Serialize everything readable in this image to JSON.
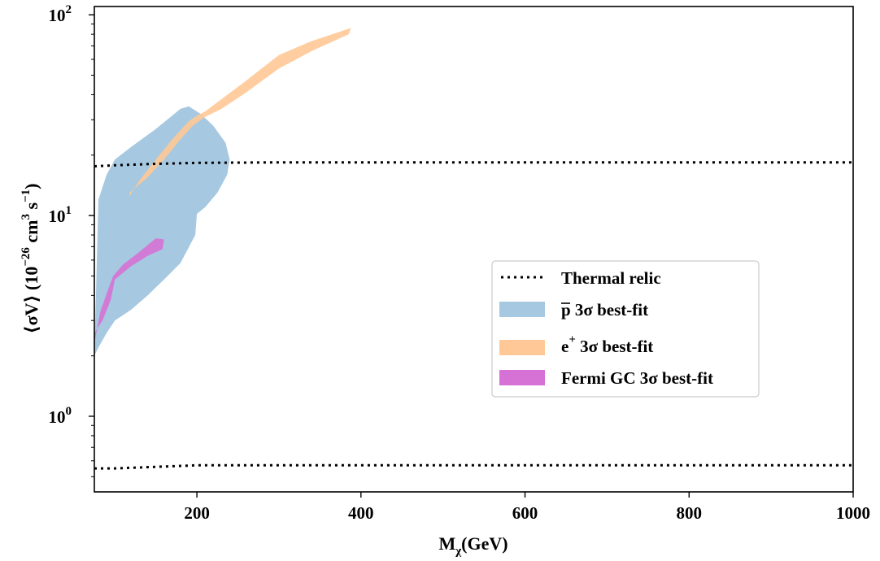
{
  "chart_data": {
    "type": "area",
    "title": "",
    "xlabel_main": "M",
    "xlabel_sub": "χ",
    "xlabel_rest": "(GeV)",
    "ylabel_parts": {
      "start": "⟨σV⟩ (10",
      "exp1": "−26",
      "mid": " cm",
      "exp2": "3",
      "mid2": " s",
      "exp3": "−1",
      "end": ")"
    },
    "xlim": [
      75,
      1000
    ],
    "ylim": [
      0.42,
      110
    ],
    "yscale": "log",
    "x_ticks": [
      {
        "value": 200,
        "label": "200"
      },
      {
        "value": 400,
        "label": "400"
      },
      {
        "value": 600,
        "label": "600"
      },
      {
        "value": 800,
        "label": "800"
      },
      {
        "value": 1000,
        "label": "1000"
      }
    ],
    "y_ticks": [
      {
        "value": 1,
        "base": "10",
        "exp": "0"
      },
      {
        "value": 10,
        "base": "10",
        "exp": "1"
      },
      {
        "value": 100,
        "base": "10",
        "exp": "2"
      }
    ],
    "legend_position": "center-right",
    "series": [
      {
        "name": "Thermal relic",
        "kind": "line",
        "style": "dotted",
        "color": "#000000",
        "segments": [
          {
            "x": [
              75,
              100,
              150,
              200,
              300,
              500,
              1000
            ],
            "y": [
              17.6,
              17.8,
              18.1,
              18.3,
              18.4,
              18.4,
              18.4
            ]
          },
          {
            "x": [
              75,
              100,
              150,
              200,
              300,
              500,
              1000
            ],
            "y": [
              0.55,
              0.55,
              0.56,
              0.57,
              0.57,
              0.57,
              0.57
            ]
          }
        ]
      },
      {
        "name": "p̅ 3σ best-fit",
        "kind": "region",
        "color": "#a6c8e0",
        "polygon": {
          "x": [
            75,
            80,
            90,
            100,
            120,
            150,
            180,
            190,
            205,
            220,
            235,
            240,
            237,
            225,
            210,
            200,
            198,
            180,
            160,
            140,
            120,
            100,
            90,
            80,
            75
          ],
          "y": [
            2.0,
            12.0,
            16.0,
            19.0,
            22.0,
            27.0,
            34.0,
            35.0,
            32.0,
            28.0,
            23.0,
            19.0,
            16.0,
            13.0,
            11.0,
            10.2,
            8.0,
            5.8,
            4.8,
            4.0,
            3.4,
            3.0,
            2.6,
            2.2,
            2.0
          ]
        }
      },
      {
        "name": "e⁺ 3σ best-fit",
        "kind": "region",
        "color": "#ffc896",
        "opacity": 0.9,
        "polygon": {
          "x": [
            118,
            140,
            160,
            180,
            195,
            210,
            230,
            260,
            300,
            340,
            385,
            388,
            340,
            300,
            260,
            230,
            210,
            200,
            190,
            170,
            150,
            130,
            118
          ],
          "y": [
            13.0,
            15.5,
            19.0,
            24.0,
            28.0,
            31.0,
            34.0,
            41.0,
            54.0,
            66.0,
            80.0,
            86.0,
            74.0,
            63.0,
            47.0,
            38.0,
            33.0,
            31.5,
            29.5,
            24.0,
            19.0,
            15.0,
            12.5
          ]
        }
      },
      {
        "name": "Fermi GC 3σ best-fit",
        "kind": "region",
        "color": "#d672d6",
        "opacity": 0.9,
        "polygon": {
          "x": [
            75,
            85,
            95,
            100,
            120,
            140,
            158,
            160,
            150,
            130,
            110,
            98,
            92,
            82,
            75
          ],
          "y": [
            2.6,
            3.0,
            3.8,
            4.8,
            5.6,
            6.3,
            6.8,
            7.6,
            7.7,
            6.6,
            5.7,
            5.0,
            4.3,
            3.3,
            2.3
          ]
        }
      }
    ]
  },
  "legend": {
    "items": [
      {
        "label": "Thermal relic",
        "type": "dotted-line",
        "color": "#000000"
      },
      {
        "label": "p 3σ best-fit",
        "type": "patch",
        "color": "#a6c8e0",
        "overline": true
      },
      {
        "label": "e 3σ best-fit",
        "type": "patch",
        "color": "#ffc896",
        "sup": "+"
      },
      {
        "label": "Fermi GC 3σ best-fit",
        "type": "patch",
        "color": "#d672d6"
      }
    ]
  }
}
